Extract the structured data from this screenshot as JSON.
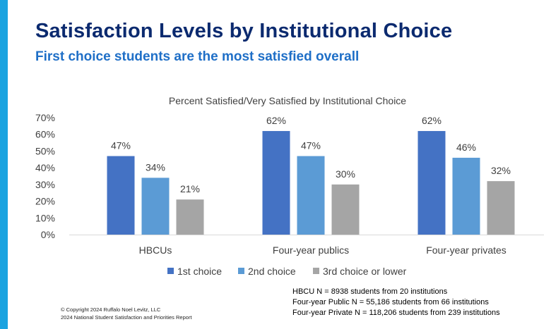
{
  "slide": {
    "title": "Satisfaction Levels by Institutional Choice",
    "subtitle": "First choice students are the most satisfied overall"
  },
  "colors": {
    "accent": "#1aa3e0",
    "title": "#0b2a6f",
    "subtitle": "#1f6fc7"
  },
  "chart_data": {
    "type": "bar",
    "title": "Percent Satisfied/Very Satisfied by Institutional Choice",
    "categories": [
      "HBCUs",
      "Four-year publics",
      "Four-year privates"
    ],
    "series": [
      {
        "name": "1st choice",
        "values": [
          47,
          62,
          62
        ],
        "color": "#4472c4"
      },
      {
        "name": "2nd choice",
        "values": [
          34,
          47,
          46
        ],
        "color": "#5b9bd5"
      },
      {
        "name": "3rd choice or lower",
        "values": [
          21,
          30,
          32
        ],
        "color": "#a5a5a5"
      }
    ],
    "yticks": [
      "0%",
      "10%",
      "20%",
      "30%",
      "40%",
      "50%",
      "60%",
      "70%"
    ],
    "ylim": [
      0,
      70
    ],
    "data_labels": [
      [
        "47%",
        "62%",
        "62%"
      ],
      [
        "34%",
        "47%",
        "46%"
      ],
      [
        "21%",
        "30%",
        "32%"
      ]
    ],
    "legend_position": "bottom"
  },
  "notes": [
    "HBCU N = 8938 students from 20 institutions",
    "Four-year Public N = 55,186 students from 66 institutions",
    "Four-year Private N = 118,206 students from 239 institutions"
  ],
  "footer": {
    "copyright": "© Copyright 2024 Ruffalo Noel Levitz, LLC",
    "report": "2024 National Student Satisfaction and Priorities Report"
  }
}
